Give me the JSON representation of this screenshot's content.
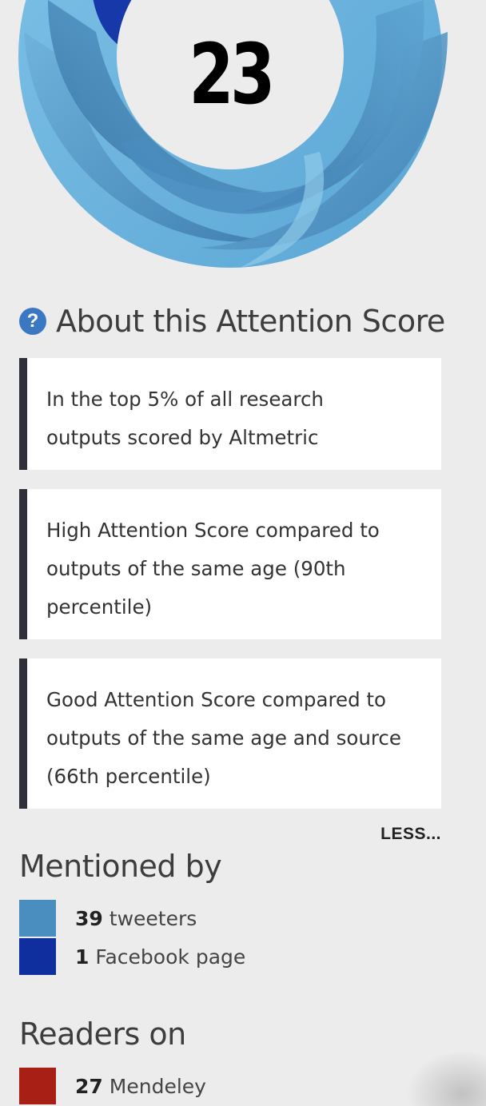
{
  "score": {
    "value": "23"
  },
  "about": {
    "icon": "help-icon",
    "icon_glyph": "?",
    "title": "About this Attention Score",
    "cards": [
      {
        "line1": "In the top 5% of all research",
        "line2": "outputs scored by Altmetric",
        "line3": ""
      },
      {
        "line1": "High Attention Score compared to",
        "line2": "outputs of the same age (90th",
        "line3": "percentile)"
      },
      {
        "line1": "Good Attention Score compared to",
        "line2": "outputs of the same age and source",
        "line3": "(66th percentile)"
      }
    ],
    "less_label": "LESS..."
  },
  "mentioned_by": {
    "title": "Mentioned by",
    "items": [
      {
        "count": "39",
        "label": "tweeters",
        "color": "#4a8dbf"
      },
      {
        "count": "1",
        "label": "Facebook page",
        "color": "#0f2f9e"
      }
    ]
  },
  "readers_on": {
    "title": "Readers on",
    "items": [
      {
        "count": "27",
        "label": "Mendeley",
        "color": "#a81f16"
      }
    ]
  },
  "colors": {
    "donut_light": "#8fcbe8",
    "donut_mid": "#5aa3d0",
    "donut_dark": "#3d7fb0",
    "donut_navy": "#1738a8",
    "card_border": "#30303a",
    "help_icon": "#3b78c4"
  }
}
